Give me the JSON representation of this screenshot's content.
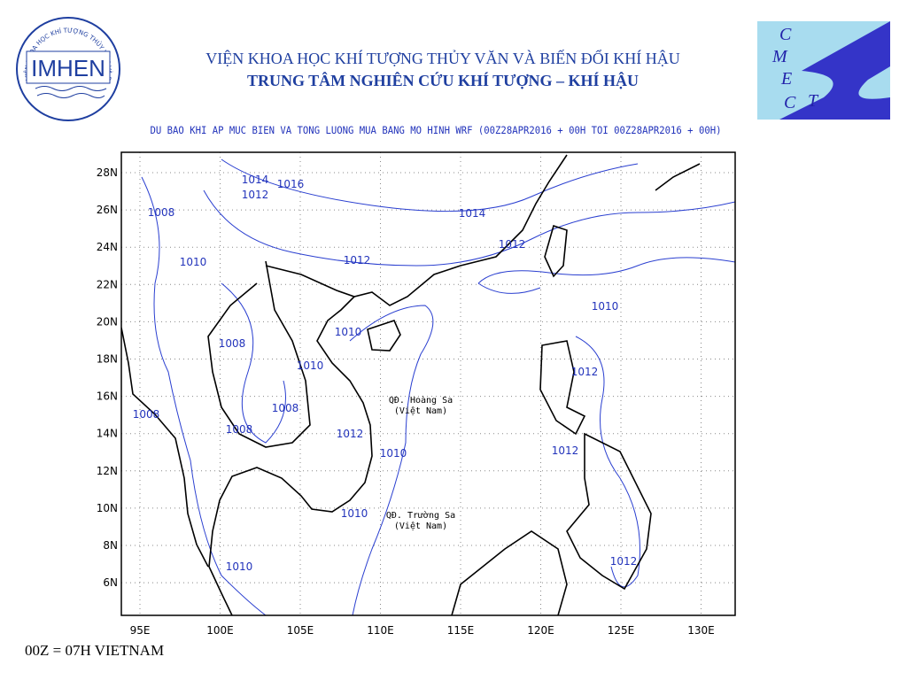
{
  "header": {
    "institute": "VIỆN KHOA HỌC KHÍ TƯỢNG THỦY VĂN VÀ BIẾN ĐỔI KHÍ HẬU",
    "center": "TRUNG TÂM NGHIÊN CỨU KHÍ TƯỢNG – KHÍ HẬU"
  },
  "logo_left": {
    "name": "IMHEN",
    "ring": "VIỆN KHOA HỌC KHÍ TƯỢNG THỦY VĂN VÀ BIẾN ĐỔI KHÍ HẬU"
  },
  "logo_right": {
    "letters": [
      "C",
      "M",
      "E",
      "T",
      "C"
    ]
  },
  "map": {
    "title": "DU BAO KHI AP MUC BIEN VA TONG LUONG MUA BANG MO HINH WRF (00Z28APR2016 + 00H TOI 00Z28APR2016 + 00H)",
    "lon_ticks": [
      {
        "value": 95,
        "label": "95E"
      },
      {
        "value": 100,
        "label": "100E"
      },
      {
        "value": 105,
        "label": "105E"
      },
      {
        "value": 110,
        "label": "110E"
      },
      {
        "value": 115,
        "label": "115E"
      },
      {
        "value": 120,
        "label": "120E"
      },
      {
        "value": 125,
        "label": "125E"
      },
      {
        "value": 130,
        "label": "130E"
      }
    ],
    "lat_ticks": [
      {
        "value": 28,
        "label": "28N"
      },
      {
        "value": 26,
        "label": "26N"
      },
      {
        "value": 24,
        "label": "24N"
      },
      {
        "value": 22,
        "label": "22N"
      },
      {
        "value": 20,
        "label": "20N"
      },
      {
        "value": 18,
        "label": "18N"
      },
      {
        "value": 16,
        "label": "16N"
      },
      {
        "value": 14,
        "label": "14N"
      },
      {
        "value": 12,
        "label": "12N"
      },
      {
        "value": 10,
        "label": "10N"
      },
      {
        "value": 8,
        "label": "8N"
      },
      {
        "value": 6,
        "label": "6N"
      }
    ],
    "contour_labels": [
      "1014",
      "1016",
      "1012",
      "1008",
      "1014",
      "1010",
      "1012",
      "1012",
      "1010",
      "1010",
      "1008",
      "1010",
      "1012",
      "1008",
      "1008",
      "1008",
      "1012",
      "1010",
      "1012",
      "1010",
      "1010",
      "1012"
    ],
    "places": [
      [
        "QĐ. Hoàng Sa",
        "(Việt Nam)"
      ],
      [
        "QĐ. Trường Sa",
        "(Việt Nam)"
      ]
    ]
  },
  "footer": {
    "note": "00Z = 07H VIETNAM"
  }
}
